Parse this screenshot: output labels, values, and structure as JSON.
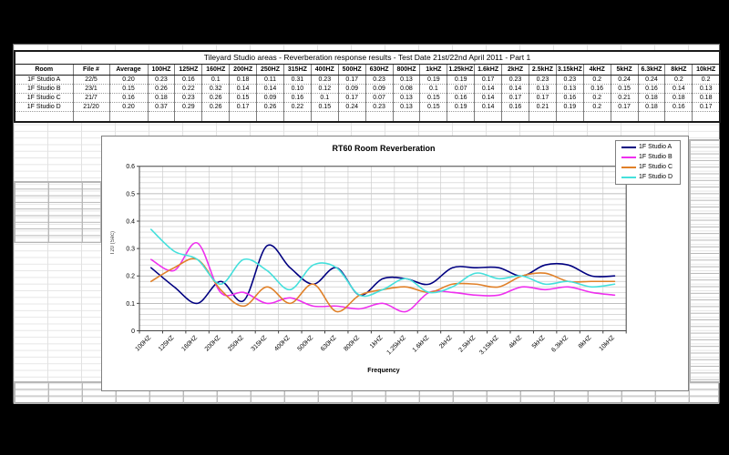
{
  "table": {
    "title": "Tileyard Studio areas - Reverberation response results - Test Date 21st/22nd April 2011 - Part 1",
    "columns": [
      "Room",
      "File #",
      "Average",
      "100HZ",
      "125HZ",
      "160HZ",
      "200HZ",
      "250HZ",
      "315HZ",
      "400HZ",
      "500HZ",
      "630HZ",
      "800HZ",
      "1kHZ",
      "1.25kHZ",
      "1.6kHZ",
      "2kHZ",
      "2.5kHZ",
      "3.15kHZ",
      "4kHZ",
      "5kHZ",
      "6.3kHZ",
      "8kHZ",
      "10kHZ"
    ],
    "rows": [
      {
        "room": "1F Studio A",
        "file": "22/5",
        "average": "0.20",
        "values": [
          "0.23",
          "0.16",
          "0.1",
          "0.18",
          "0.11",
          "0.31",
          "0.23",
          "0.17",
          "0.23",
          "0.13",
          "0.19",
          "0.19",
          "0.17",
          "0.23",
          "0.23",
          "0.23",
          "0.2",
          "0.24",
          "0.24",
          "0.2",
          "0.2"
        ]
      },
      {
        "room": "1F Studio B",
        "file": "23/1",
        "average": "0.15",
        "values": [
          "0.26",
          "0.22",
          "0.32",
          "0.14",
          "0.14",
          "0.10",
          "0.12",
          "0.09",
          "0.09",
          "0.08",
          "0.1",
          "0.07",
          "0.14",
          "0.14",
          "0.13",
          "0.13",
          "0.16",
          "0.15",
          "0.16",
          "0.14",
          "0.13"
        ]
      },
      {
        "room": "1F Studio C",
        "file": "21/7",
        "average": "0.16",
        "values": [
          "0.18",
          "0.23",
          "0.26",
          "0.15",
          "0.09",
          "0.16",
          "0.1",
          "0.17",
          "0.07",
          "0.13",
          "0.15",
          "0.16",
          "0.14",
          "0.17",
          "0.17",
          "0.16",
          "0.2",
          "0.21",
          "0.18",
          "0.18",
          "0.18"
        ]
      },
      {
        "room": "1F Studio D",
        "file": "21/20",
        "average": "0.20",
        "values": [
          "0.37",
          "0.29",
          "0.26",
          "0.17",
          "0.26",
          "0.22",
          "0.15",
          "0.24",
          "0.23",
          "0.13",
          "0.15",
          "0.19",
          "0.14",
          "0.16",
          "0.21",
          "0.19",
          "0.2",
          "0.17",
          "0.18",
          "0.16",
          "0.17"
        ]
      }
    ]
  },
  "chart_data": {
    "type": "line",
    "title": "RT60 Room Reverberation",
    "xlabel": "Frequency",
    "ylabel": "T20 (Sec)",
    "ylim": [
      0,
      0.6
    ],
    "y_tick_step": 0.1,
    "y_minor_step": 0.02,
    "grid": true,
    "smooth": true,
    "legend_position": "top-right",
    "categories": [
      "100HZ",
      "125HZ",
      "160HZ",
      "200HZ",
      "250HZ",
      "315HZ",
      "400HZ",
      "500HZ",
      "630HZ",
      "800HZ",
      "1kHZ",
      "1.25kHZ",
      "1.6kHZ",
      "2kHZ",
      "2.5kHZ",
      "3.15kHZ",
      "4kHZ",
      "5kHZ",
      "6.3kHZ",
      "8kHZ",
      "10kHZ"
    ],
    "series": [
      {
        "name": "1F Studio A",
        "color": "#000080",
        "values": [
          0.23,
          0.16,
          0.1,
          0.18,
          0.11,
          0.31,
          0.23,
          0.17,
          0.23,
          0.13,
          0.19,
          0.19,
          0.17,
          0.23,
          0.23,
          0.23,
          0.2,
          0.24,
          0.24,
          0.2,
          0.2
        ]
      },
      {
        "name": "1F Studio B",
        "color": "#EE30EE",
        "values": [
          0.26,
          0.22,
          0.32,
          0.14,
          0.14,
          0.1,
          0.12,
          0.09,
          0.09,
          0.08,
          0.1,
          0.07,
          0.14,
          0.14,
          0.13,
          0.13,
          0.16,
          0.15,
          0.16,
          0.14,
          0.13
        ]
      },
      {
        "name": "1F Studio C",
        "color": "#E08028",
        "values": [
          0.18,
          0.23,
          0.26,
          0.15,
          0.09,
          0.16,
          0.1,
          0.17,
          0.07,
          0.13,
          0.15,
          0.16,
          0.14,
          0.17,
          0.17,
          0.16,
          0.2,
          0.21,
          0.18,
          0.18,
          0.18
        ]
      },
      {
        "name": "1F Studio D",
        "color": "#45E0DC",
        "values": [
          0.37,
          0.29,
          0.26,
          0.17,
          0.26,
          0.22,
          0.15,
          0.24,
          0.23,
          0.13,
          0.15,
          0.19,
          0.14,
          0.16,
          0.21,
          0.19,
          0.2,
          0.17,
          0.18,
          0.16,
          0.17
        ]
      }
    ],
    "colors": {
      "grid_minor": "#cccccc",
      "grid_major": "#a8a8a8",
      "axis": "#404040"
    }
  }
}
